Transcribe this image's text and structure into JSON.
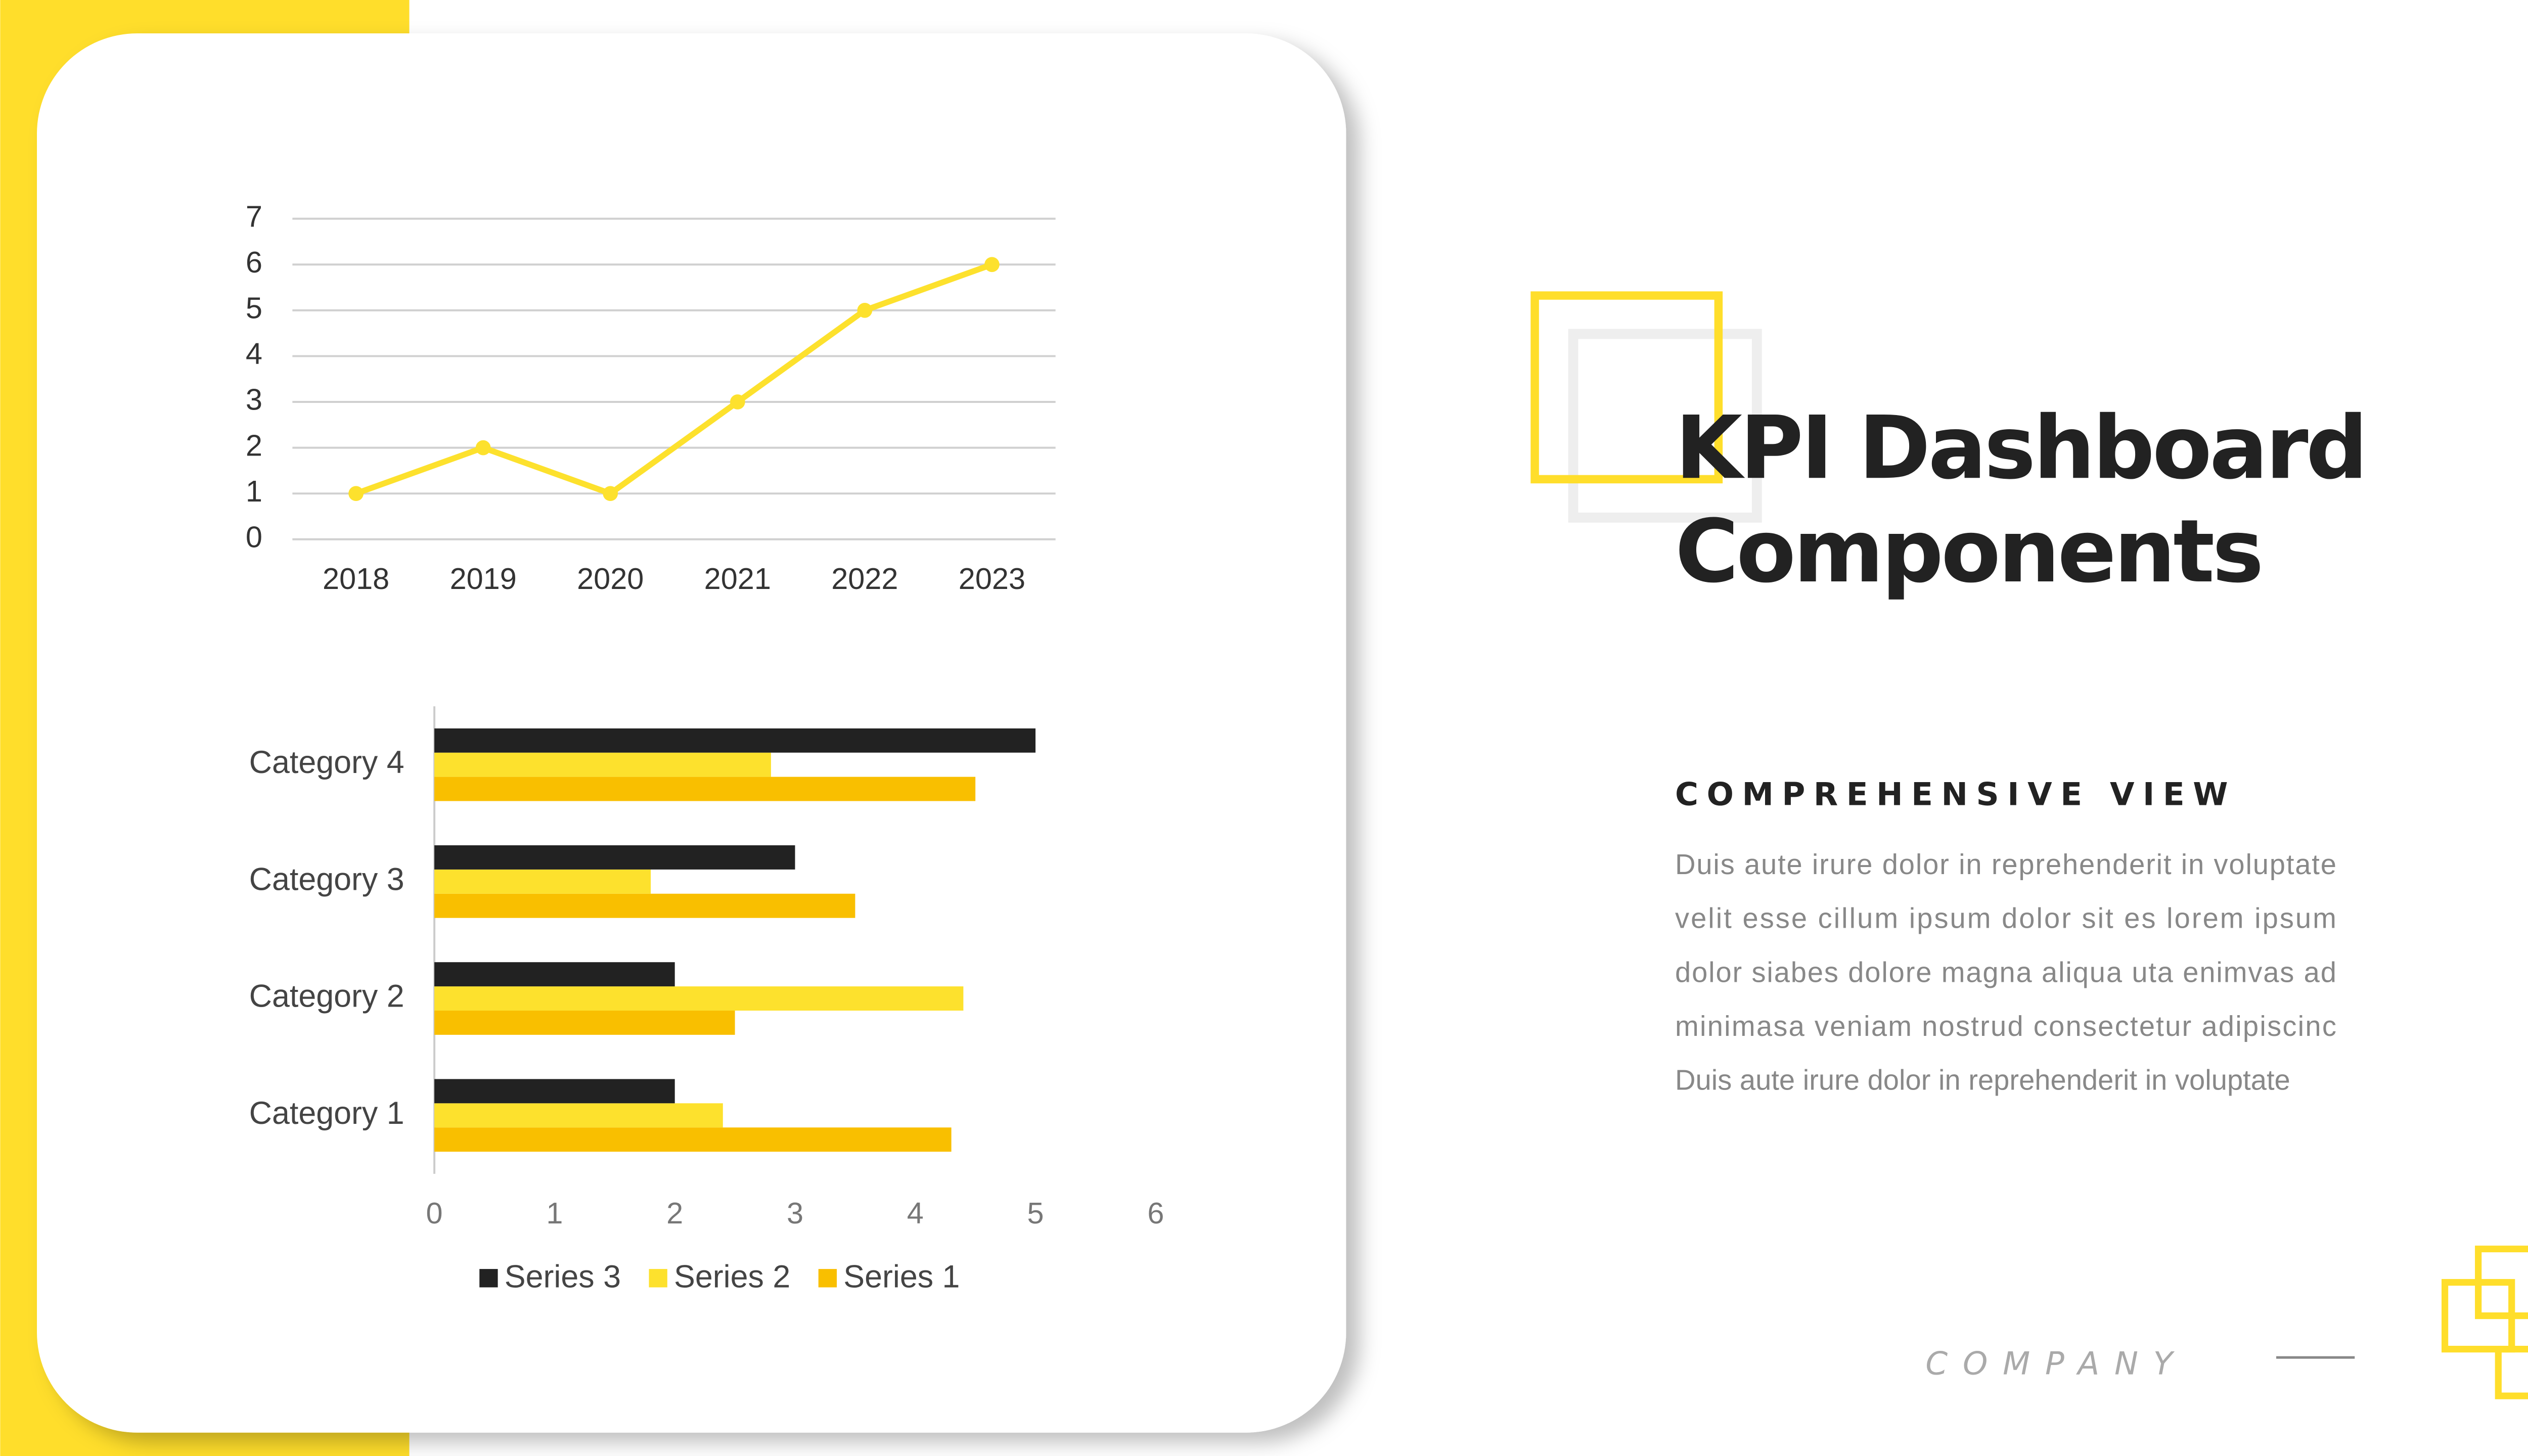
{
  "chart_data": [
    {
      "type": "line",
      "categories": [
        "2018",
        "2019",
        "2020",
        "2021",
        "2022",
        "2023"
      ],
      "values": [
        1,
        2,
        1,
        3,
        5,
        6
      ],
      "color": "#fde12d",
      "ylim": [
        0,
        7
      ],
      "yticks": [
        0,
        1,
        2,
        3,
        4,
        5,
        6,
        7
      ],
      "grid": true
    },
    {
      "type": "hbar",
      "categories": [
        "Category 1",
        "Category 2",
        "Category 3",
        "Category 4"
      ],
      "series": [
        {
          "name": "Series 1",
          "color": "#f9bf00",
          "values": [
            4.3,
            2.5,
            3.5,
            4.5
          ]
        },
        {
          "name": "Series 2",
          "color": "#fde12d",
          "values": [
            2.4,
            4.4,
            1.8,
            2.8
          ]
        },
        {
          "name": "Series 3",
          "color": "#222222",
          "values": [
            2,
            2,
            3,
            5
          ]
        }
      ],
      "xlim": [
        0,
        6
      ],
      "xticks": [
        0,
        1,
        2,
        3,
        4,
        5,
        6
      ],
      "legend": "bottom"
    }
  ],
  "slide": {
    "title": [
      "KPI Dashboard",
      "Components"
    ],
    "subtitle": "COMPREHENSIVE VIEW",
    "body": [
      "Duis aute irure dolor in reprehenderit in voluptate",
      "velit esse cillum ipsum dolor sit es lorem ipsum",
      "dolor siabes dolore magna aliqua uta enimvas ad",
      "minimasa veniam nostrud consectetur adipiscinc",
      "Duis aute irure dolor in reprehenderit in voluptate"
    ],
    "footer": "COMPANY"
  }
}
